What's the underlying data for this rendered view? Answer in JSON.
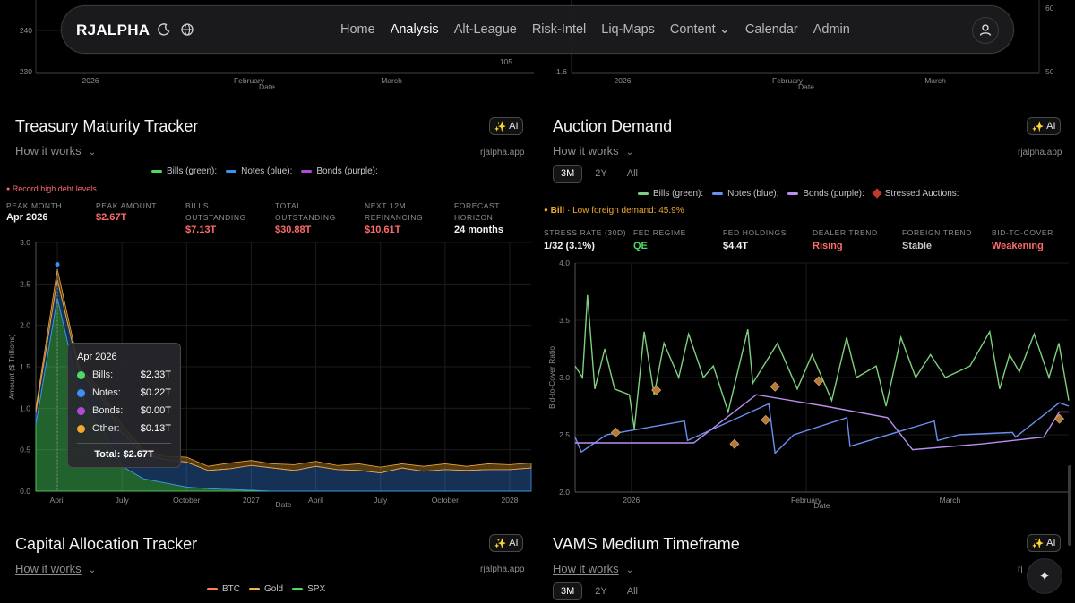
{
  "nav": {
    "brand": "RJALPHA",
    "items": [
      {
        "label": "Home",
        "active": false
      },
      {
        "label": "Analysis",
        "active": true
      },
      {
        "label": "Alt-League",
        "active": false
      },
      {
        "label": "Risk-Intel",
        "active": false
      },
      {
        "label": "Liq-Maps",
        "active": false
      },
      {
        "label": "Content ⌄",
        "active": false
      },
      {
        "label": "Calendar",
        "active": false
      },
      {
        "label": "Admin",
        "active": false
      }
    ]
  },
  "top_left_chart": {
    "yticks": [
      "240",
      "230"
    ],
    "ytick_right": "105",
    "xticks": [
      "2026",
      "February",
      "March"
    ],
    "xlabel": "Date"
  },
  "top_right_chart": {
    "yticks": [
      "1.6"
    ],
    "yticks_right": [
      "60",
      "50"
    ],
    "xticks": [
      "2026",
      "February",
      "March"
    ],
    "xlabel": "Date"
  },
  "treasury": {
    "title": "Treasury Maturity Tracker",
    "how": "How it works",
    "site": "rjalpha.app",
    "ai": "AI",
    "legend": [
      {
        "label": "Bills (green):",
        "color": "#4cd964"
      },
      {
        "label": "Notes (blue):",
        "color": "#3b8ff5"
      },
      {
        "label": "Bonds (purple):",
        "color": "#b04bd8"
      }
    ],
    "alert": "Record high debt levels",
    "stats": [
      {
        "label": "PEAK MONTH",
        "value": "Apr 2026",
        "tone": "white"
      },
      {
        "label": "PEAK AMOUNT",
        "value": "$2.67T",
        "tone": "red"
      },
      {
        "label": "BILLS OUTSTANDING",
        "value": "$7.13T",
        "tone": "red"
      },
      {
        "label": "TOTAL OUTSTANDING",
        "value": "$30.88T",
        "tone": "red"
      },
      {
        "label": "NEXT 12M REFINANCING",
        "value": "$10.61T",
        "tone": "red"
      },
      {
        "label": "FORECAST HORIZON",
        "value": "24 months",
        "tone": "white"
      }
    ],
    "tooltip": {
      "title": "Apr 2026",
      "rows": [
        {
          "label": "Bills:",
          "value": "$2.33T",
          "color": "#4cd964"
        },
        {
          "label": "Notes:",
          "value": "$0.22T",
          "color": "#3b8ff5"
        },
        {
          "label": "Bonds:",
          "value": "$0.00T",
          "color": "#b04bd8"
        },
        {
          "label": "Other:",
          "value": "$0.13T",
          "color": "#f0a830"
        }
      ],
      "total": "Total: $2.67T"
    }
  },
  "auction": {
    "title": "Auction Demand",
    "how": "How it works",
    "site": "rjalpha.app",
    "ai": "AI",
    "ranges": [
      "3M",
      "2Y",
      "All"
    ],
    "selected_range": "3M",
    "legend": [
      {
        "label": "Bills (green):",
        "color": "#7ed07e",
        "kind": "line"
      },
      {
        "label": "Notes (blue):",
        "color": "#6b8ff0",
        "kind": "line"
      },
      {
        "label": "Bonds (purple):",
        "color": "#b98ff0",
        "kind": "line"
      },
      {
        "label": "Stressed Auctions:",
        "color": "#c0392b",
        "kind": "diamond"
      }
    ],
    "alert_prefix": "Bill",
    "alert_text": "· Low foreign demand: 45.9%",
    "stats": [
      {
        "label": "STRESS RATE (30D)",
        "value": "1/32 (3.1%)",
        "tone": "white"
      },
      {
        "label": "FED REGIME",
        "value": "QE",
        "tone": "green"
      },
      {
        "label": "FED HOLDINGS",
        "value": "$4.4T",
        "tone": "white"
      },
      {
        "label": "DEALER TREND",
        "value": "Rising",
        "tone": "red"
      },
      {
        "label": "FOREIGN TREND",
        "value": "Stable",
        "tone": "gray"
      },
      {
        "label": "BID-TO-COVER",
        "value": "Weakening",
        "tone": "red"
      }
    ]
  },
  "capital": {
    "title": "Capital Allocation Tracker",
    "how": "How it works",
    "site": "rjalpha.app",
    "ai": "AI",
    "legend": [
      {
        "label": "BTC",
        "color": "#ff7f50"
      },
      {
        "label": "Gold",
        "color": "#f0b450"
      },
      {
        "label": "SPX",
        "color": "#4cd964"
      }
    ]
  },
  "vams": {
    "title": "VAMS Medium Timeframe",
    "how": "How it works",
    "site": "rj",
    "ai": "AI",
    "ranges": [
      "3M",
      "2Y",
      "All"
    ],
    "selected_range": "3M"
  },
  "chart_data": [
    {
      "type": "area",
      "title": "Treasury Maturity Tracker",
      "xlabel": "Date",
      "ylabel": "Amount ($ Trillions)",
      "ylim": [
        0,
        3.0
      ],
      "yticks": [
        0.0,
        0.5,
        1.0,
        1.5,
        2.0,
        2.5,
        3.0
      ],
      "xtick_labels": [
        "April",
        "July",
        "October",
        "2027",
        "April",
        "July",
        "October",
        "2028"
      ],
      "categories": [
        "Mar 2026",
        "Apr 2026",
        "May 2026",
        "Jun 2026",
        "Jul 2026",
        "Aug 2026",
        "Sep 2026",
        "Oct 2026",
        "Nov 2026",
        "Dec 2026",
        "Jan 2027",
        "Feb 2027",
        "Mar 2027",
        "Apr 2027",
        "May 2027",
        "Jun 2027",
        "Jul 2027",
        "Aug 2027",
        "Sep 2027",
        "Oct 2027",
        "Nov 2027",
        "Dec 2027",
        "Jan 2028",
        "Feb 2028"
      ],
      "series": [
        {
          "name": "Bills",
          "color": "#4cd964",
          "values": [
            0.8,
            2.33,
            1.2,
            0.8,
            0.3,
            0.15,
            0.1,
            0.05,
            0.03,
            0.02,
            0.01,
            0,
            0,
            0,
            0,
            0,
            0,
            0,
            0,
            0,
            0,
            0,
            0,
            0
          ]
        },
        {
          "name": "Notes",
          "color": "#3b8ff5",
          "values": [
            0.15,
            0.22,
            0.25,
            0.35,
            0.4,
            0.3,
            0.28,
            0.3,
            0.22,
            0.25,
            0.3,
            0.28,
            0.25,
            0.3,
            0.26,
            0.25,
            0.22,
            0.28,
            0.24,
            0.26,
            0.25,
            0.26,
            0.26,
            0.28
          ]
        },
        {
          "name": "Bonds",
          "color": "#b04bd8",
          "values": [
            0,
            0,
            0,
            0,
            0,
            0,
            0,
            0,
            0,
            0,
            0,
            0,
            0,
            0,
            0,
            0,
            0,
            0,
            0,
            0,
            0,
            0,
            0,
            0
          ]
        },
        {
          "name": "Other",
          "color": "#f0a830",
          "values": [
            0.05,
            0.13,
            0.05,
            0.08,
            0.1,
            0.05,
            0.04,
            0.06,
            0.05,
            0.07,
            0.06,
            0.05,
            0.07,
            0.06,
            0.05,
            0.08,
            0.07,
            0.05,
            0.06,
            0.07,
            0.05,
            0.07,
            0.06,
            0.06
          ]
        }
      ]
    },
    {
      "type": "line",
      "title": "Auction Demand",
      "xlabel": "Date",
      "ylabel": "Bid-to-Cover Ratio",
      "ylim": [
        2.0,
        4.0
      ],
      "yticks": [
        2.0,
        2.5,
        3.0,
        3.5,
        4.0
      ],
      "xtick_labels": [
        "2026",
        "February",
        "March"
      ],
      "series": [
        {
          "name": "Bills",
          "color": "#7ed07e",
          "points": [
            [
              0,
              3.1
            ],
            [
              0.015,
              3.0
            ],
            [
              0.025,
              3.72
            ],
            [
              0.04,
              2.9
            ],
            [
              0.06,
              3.25
            ],
            [
              0.08,
              2.9
            ],
            [
              0.11,
              2.85
            ],
            [
              0.12,
              2.55
            ],
            [
              0.14,
              3.4
            ],
            [
              0.16,
              2.85
            ],
            [
              0.18,
              3.3
            ],
            [
              0.21,
              3.0
            ],
            [
              0.23,
              3.38
            ],
            [
              0.26,
              3.0
            ],
            [
              0.28,
              3.1
            ],
            [
              0.31,
              2.7
            ],
            [
              0.35,
              3.42
            ],
            [
              0.36,
              2.95
            ],
            [
              0.41,
              3.3
            ],
            [
              0.45,
              2.9
            ],
            [
              0.48,
              3.2
            ],
            [
              0.52,
              2.8
            ],
            [
              0.55,
              3.35
            ],
            [
              0.57,
              3.0
            ],
            [
              0.61,
              3.1
            ],
            [
              0.63,
              2.75
            ],
            [
              0.66,
              3.35
            ],
            [
              0.69,
              3.0
            ],
            [
              0.72,
              3.2
            ],
            [
              0.75,
              3.0
            ],
            [
              0.8,
              3.1
            ],
            [
              0.84,
              3.4
            ],
            [
              0.86,
              2.9
            ],
            [
              0.88,
              3.2
            ],
            [
              0.9,
              3.05
            ],
            [
              0.93,
              3.38
            ],
            [
              0.96,
              3.0
            ],
            [
              0.98,
              3.3
            ],
            [
              1.0,
              2.8
            ]
          ]
        },
        {
          "name": "Notes",
          "color": "#6b8ff0",
          "points": [
            [
              0,
              2.48
            ],
            [
              0.02,
              2.35
            ],
            [
              0.1,
              2.5
            ],
            [
              0.35,
              2.62
            ],
            [
              0.36,
              2.45
            ],
            [
              0.62,
              2.77
            ],
            [
              0.64,
              2.34
            ],
            [
              0.7,
              2.5
            ],
            [
              0.87,
              2.65
            ],
            [
              0.88,
              2.4
            ],
            [
              1.15,
              2.62
            ],
            [
              1.16,
              2.45
            ],
            [
              1.23,
              2.5
            ],
            [
              1.4,
              2.52
            ],
            [
              1.41,
              2.48
            ],
            [
              1.55,
              2.78
            ],
            [
              1.58,
              2.75
            ]
          ]
        },
        {
          "name": "Bonds",
          "color": "#b98ff0",
          "points": [
            [
              0,
              2.43
            ],
            [
              0.38,
              2.43
            ],
            [
              0.58,
              2.85
            ],
            [
              0.8,
              2.75
            ],
            [
              1.0,
              2.65
            ],
            [
              1.08,
              2.37
            ],
            [
              1.3,
              2.42
            ],
            [
              1.4,
              2.45
            ],
            [
              1.5,
              2.48
            ],
            [
              1.55,
              2.7
            ],
            [
              1.58,
              2.7
            ]
          ]
        }
      ],
      "stressed_auctions": [
        [
          0.13,
          2.52
        ],
        [
          0.26,
          2.89
        ],
        [
          0.51,
          2.42
        ],
        [
          0.61,
          2.63
        ],
        [
          0.64,
          2.92
        ],
        [
          0.78,
          2.97
        ],
        [
          1.55,
          2.64
        ]
      ]
    }
  ]
}
